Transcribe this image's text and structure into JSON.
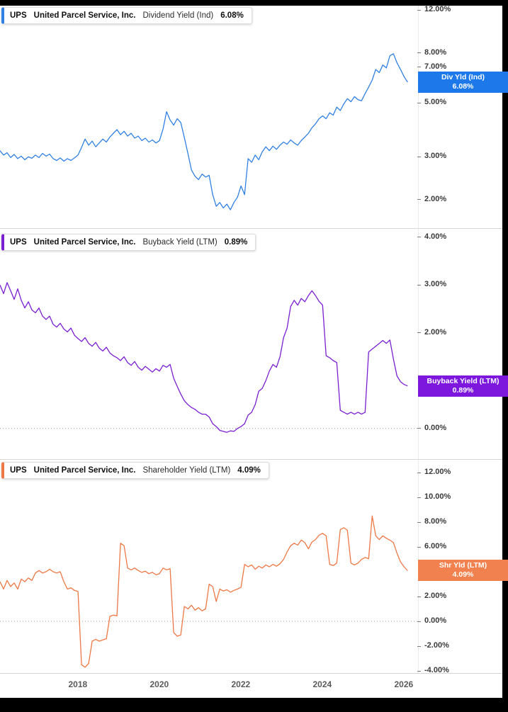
{
  "x_axis": {
    "ticks": [
      2018,
      2020,
      2022,
      2024,
      2026
    ]
  },
  "chart_data": [
    {
      "id": "dividend-yield",
      "type": "line",
      "title": "Dividend Yield (Ind)",
      "legend": {
        "ticker": "UPS",
        "company": "United Parcel Service, Inc.",
        "metric": "Dividend Yield (Ind)",
        "value": "6.08%"
      },
      "series_color": "#2f80e5",
      "scale": "log",
      "xlim": [
        2016.09,
        2026.35
      ],
      "ylim": [
        1.53,
        12.52
      ],
      "yticks": [
        12,
        8,
        7,
        5,
        3,
        2
      ],
      "zero_line": false,
      "x_start": 2016.09,
      "x_step": 0.087,
      "values": [
        3.18,
        3.05,
        3.12,
        2.98,
        3.07,
        2.95,
        3.02,
        2.92,
        3.0,
        2.96,
        3.05,
        2.98,
        3.1,
        3.02,
        3.08,
        2.95,
        2.9,
        2.97,
        2.88,
        2.95,
        2.9,
        2.97,
        3.05,
        3.28,
        3.55,
        3.35,
        3.48,
        3.3,
        3.42,
        3.55,
        3.45,
        3.62,
        3.75,
        3.88,
        3.7,
        3.82,
        3.65,
        3.75,
        3.58,
        3.65,
        3.5,
        3.58,
        3.45,
        3.52,
        3.42,
        3.5,
        3.9,
        4.6,
        4.25,
        4.05,
        4.3,
        4.15,
        3.6,
        3.1,
        2.65,
        2.5,
        2.42,
        2.55,
        2.48,
        2.52,
        2.1,
        1.88,
        1.95,
        1.85,
        1.92,
        1.82,
        1.95,
        2.05,
        2.28,
        2.1,
        2.95,
        2.85,
        3.05,
        2.92,
        3.15,
        3.3,
        3.18,
        3.32,
        3.22,
        3.35,
        3.45,
        3.38,
        3.52,
        3.42,
        3.35,
        3.5,
        3.62,
        3.75,
        3.95,
        4.1,
        4.3,
        4.42,
        4.3,
        4.55,
        4.45,
        4.8,
        4.65,
        4.95,
        5.2,
        5.05,
        5.3,
        5.15,
        5.1,
        5.45,
        5.8,
        6.2,
        6.85,
        6.65,
        7.15,
        6.95,
        7.8,
        7.95,
        7.3,
        6.85,
        6.4,
        6.08
      ],
      "last_value_label": {
        "line1": "Div Yld (Ind)",
        "line2": "6.08%",
        "value": 6.08,
        "bg": "#1d79ea"
      }
    },
    {
      "id": "buyback-yield",
      "type": "line",
      "title": "Buyback Yield (LTM)",
      "legend": {
        "ticker": "UPS",
        "company": "United Parcel Service, Inc.",
        "metric": "Buyback Yield (LTM)",
        "value": "0.89%"
      },
      "series_color": "#7a1fd2",
      "scale": "linear",
      "xlim": [
        2016.09,
        2026.35
      ],
      "ylim": [
        -0.64,
        4.19
      ],
      "yticks": [
        4,
        3,
        2,
        0
      ],
      "zero_line": true,
      "x_start": 2016.09,
      "x_step": 0.087,
      "values": [
        3.0,
        2.82,
        3.05,
        2.88,
        2.7,
        2.92,
        2.68,
        2.52,
        2.65,
        2.48,
        2.42,
        2.52,
        2.35,
        2.28,
        2.35,
        2.18,
        2.12,
        2.2,
        2.08,
        2.02,
        2.1,
        1.95,
        1.88,
        1.82,
        1.9,
        1.78,
        1.72,
        1.8,
        1.68,
        1.62,
        1.7,
        1.58,
        1.52,
        1.48,
        1.42,
        1.5,
        1.38,
        1.32,
        1.4,
        1.28,
        1.22,
        1.3,
        1.24,
        1.18,
        1.25,
        1.2,
        1.32,
        1.28,
        1.34,
        1.05,
        0.88,
        0.72,
        0.58,
        0.5,
        0.44,
        0.4,
        0.34,
        0.3,
        0.3,
        0.24,
        0.1,
        0.04,
        -0.04,
        -0.06,
        -0.08,
        -0.05,
        -0.06,
        0.0,
        0.04,
        0.1,
        0.28,
        0.34,
        0.5,
        0.78,
        0.84,
        1.0,
        1.2,
        1.34,
        1.28,
        1.5,
        1.9,
        2.1,
        2.55,
        2.68,
        2.58,
        2.72,
        2.65,
        2.78,
        2.88,
        2.78,
        2.66,
        2.58,
        1.52,
        1.48,
        1.42,
        1.38,
        0.38,
        0.34,
        0.3,
        0.34,
        0.3,
        0.34,
        0.3,
        0.34,
        1.6,
        1.66,
        1.72,
        1.78,
        1.84,
        1.78,
        1.85,
        1.45,
        1.1,
        0.98,
        0.92,
        0.89
      ],
      "last_value_label": {
        "line1": "Buyback Yield (LTM)",
        "line2": "0.89%",
        "value": 0.89,
        "bg": "#7d17de"
      }
    },
    {
      "id": "shareholder-yield",
      "type": "line",
      "title": "Shareholder Yield (LTM)",
      "legend": {
        "ticker": "UPS",
        "company": "United Parcel Service, Inc.",
        "metric": "Shareholder Yield (LTM)",
        "value": "4.09%"
      },
      "series_color": "#ee7845",
      "scale": "linear",
      "xlim": [
        2016.09,
        2026.35
      ],
      "ylim": [
        -4.17,
        13.09
      ],
      "yticks": [
        12,
        10,
        8,
        6,
        2,
        0,
        -2,
        -4
      ],
      "zero_line": true,
      "x_start": 2016.09,
      "x_step": 0.087,
      "values": [
        3.2,
        2.6,
        3.3,
        2.8,
        3.1,
        2.6,
        3.4,
        3.2,
        3.5,
        3.3,
        3.9,
        4.1,
        3.9,
        4.0,
        4.2,
        4.0,
        3.9,
        4.0,
        3.2,
        2.6,
        2.7,
        2.5,
        2.4,
        -3.5,
        -3.7,
        -3.4,
        -1.6,
        -1.45,
        -1.6,
        -1.5,
        -1.4,
        0.4,
        0.5,
        0.45,
        6.3,
        6.1,
        4.3,
        4.15,
        4.3,
        4.1,
        3.95,
        4.05,
        3.85,
        3.95,
        3.75,
        3.85,
        4.3,
        4.15,
        4.25,
        -0.9,
        -1.2,
        -1.1,
        1.2,
        1.0,
        1.3,
        0.9,
        1.1,
        0.85,
        1.0,
        3.0,
        2.8,
        1.6,
        2.6,
        2.45,
        2.55,
        2.35,
        2.5,
        2.6,
        2.75,
        4.6,
        4.4,
        4.55,
        4.2,
        4.45,
        4.3,
        4.55,
        4.4,
        4.6,
        4.45,
        4.65,
        5.0,
        5.6,
        6.1,
        6.3,
        6.15,
        6.55,
        6.35,
        5.85,
        6.4,
        6.6,
        6.95,
        7.1,
        6.9,
        4.6,
        4.5,
        4.7,
        7.4,
        7.55,
        7.35,
        4.7,
        4.55,
        4.7,
        5.0,
        5.15,
        5.05,
        8.5,
        6.9,
        6.6,
        6.9,
        6.7,
        6.55,
        6.35,
        5.5,
        4.8,
        4.4,
        4.09
      ],
      "last_value_label": {
        "line1": "Shr Yld (LTM)",
        "line2": "4.09%",
        "value": 4.09,
        "bg": "#f1824f"
      }
    }
  ]
}
